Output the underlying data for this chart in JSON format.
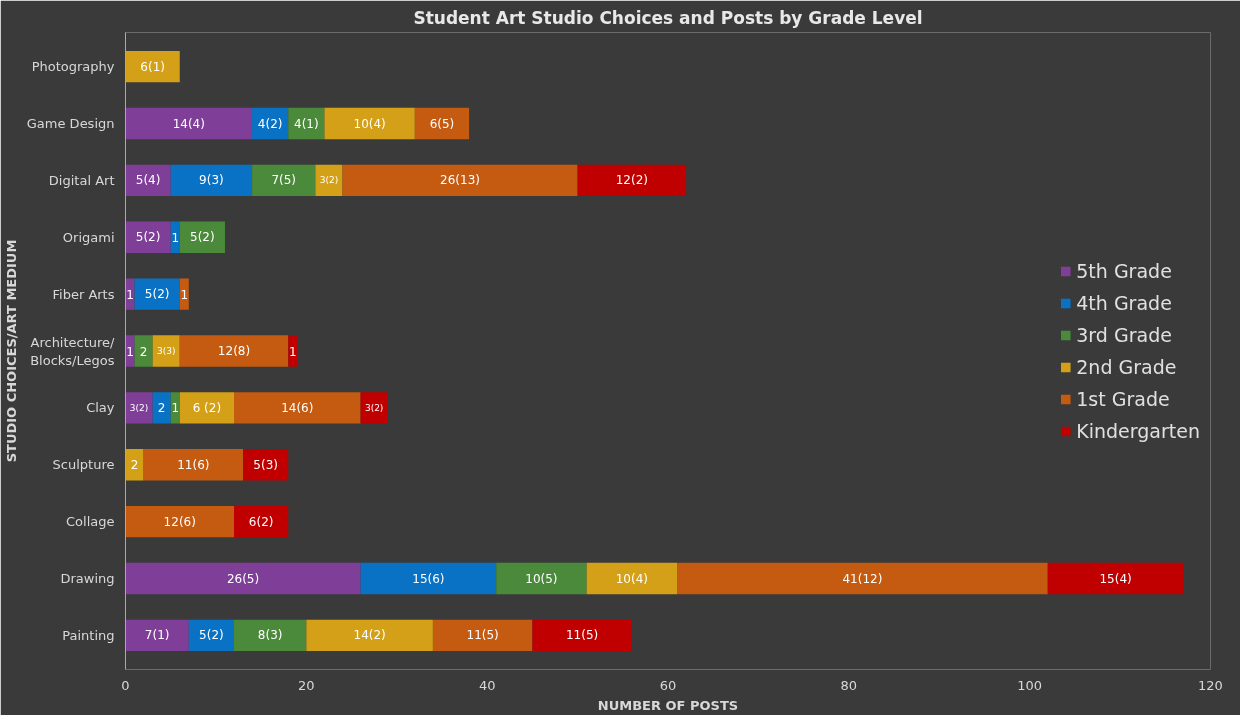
{
  "chart_data": {
    "type": "bar",
    "orientation": "horizontal",
    "stacked": true,
    "title": "Student Art Studio Choices and Posts by Grade Level",
    "xlabel": "NUMBER OF POSTS",
    "ylabel": "STUDIO CHOICES/ART MEDIUM",
    "categories": [
      "Photography",
      "Game Design",
      "Digital Art",
      "Origami",
      "Fiber Arts",
      "Architecture/\nBlocks/Legos",
      "Clay",
      "Sculpture",
      "Collage",
      "Drawing",
      "Painting"
    ],
    "xlim": [
      0,
      120
    ],
    "xticks": [
      0,
      20,
      40,
      60,
      80,
      100,
      120
    ],
    "grid": false,
    "legend": "right",
    "series": [
      {
        "name": "5th Grade",
        "color": "#7f3f98",
        "values": [
          null,
          14,
          5,
          5,
          1,
          1,
          3,
          null,
          null,
          26,
          7
        ],
        "value_labels": [
          null,
          "14(4)",
          "5(4)",
          "5(2)",
          "1",
          "1",
          "3(2)",
          null,
          null,
          "26(5)",
          "7(1)"
        ]
      },
      {
        "name": "4th Grade",
        "color": "#0a72c4",
        "values": [
          null,
          4,
          9,
          1,
          5,
          null,
          2,
          null,
          null,
          15,
          5
        ],
        "value_labels": [
          null,
          "4(2)",
          "9(3)",
          "1",
          "5(2)",
          null,
          "2",
          null,
          null,
          "15(6)",
          "5(2)"
        ]
      },
      {
        "name": "3rd Grade",
        "color": "#4a8a3a",
        "values": [
          null,
          4,
          7,
          5,
          null,
          2,
          1,
          null,
          null,
          10,
          8
        ],
        "value_labels": [
          null,
          "4(1)",
          "7(5)",
          "5(2)",
          null,
          "2",
          "1",
          null,
          null,
          "10(5)",
          "8(3)"
        ]
      },
      {
        "name": "2nd Grade",
        "color": "#d4a017",
        "values": [
          6,
          10,
          3,
          null,
          null,
          3,
          6,
          2,
          null,
          10,
          14
        ],
        "value_labels": [
          "6(1)",
          "10(4)",
          "3(2)",
          null,
          null,
          "3(3)",
          "6 (2)",
          "2",
          null,
          "10(4)",
          "14(2)"
        ]
      },
      {
        "name": "1st Grade",
        "color": "#c55a11",
        "values": [
          null,
          6,
          26,
          null,
          1,
          12,
          14,
          11,
          12,
          41,
          11
        ],
        "value_labels": [
          null,
          "6(5)",
          "26(13)",
          null,
          "1",
          "12(8)",
          "14(6)",
          "11(6)",
          "12(6)",
          "41(12)",
          "11(5)"
        ]
      },
      {
        "name": "Kindergarten",
        "color": "#c00000",
        "values": [
          null,
          null,
          12,
          null,
          null,
          1,
          3,
          5,
          6,
          15,
          11
        ],
        "value_labels": [
          null,
          null,
          "12(2)",
          null,
          null,
          "1",
          "3(2)",
          "5(3)",
          "6(2)",
          "15(4)",
          "11(5)"
        ]
      }
    ]
  }
}
